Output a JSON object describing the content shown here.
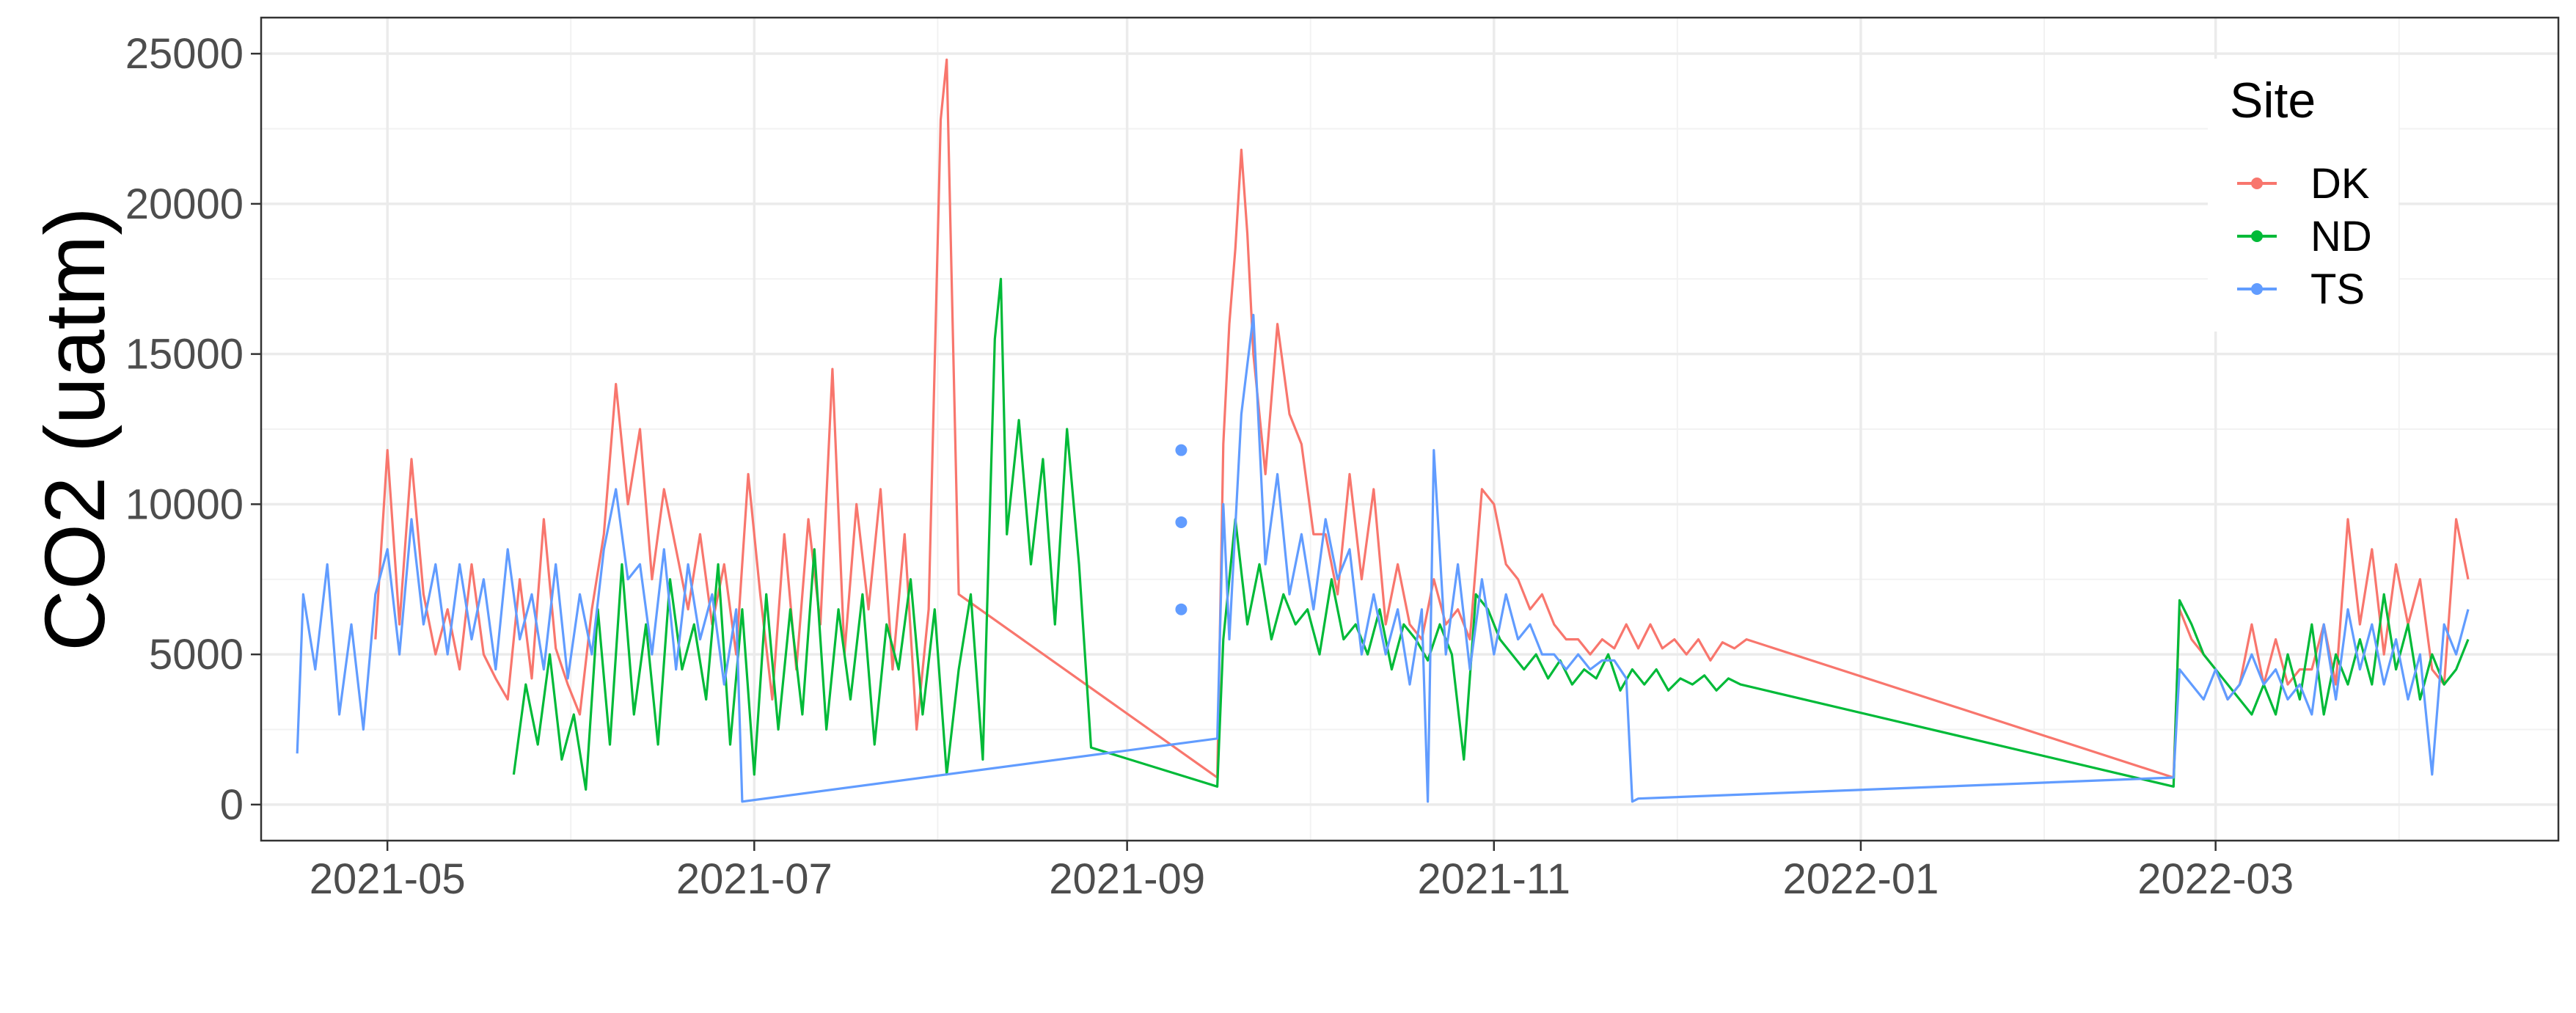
{
  "chart_data": {
    "type": "line",
    "title": "",
    "xlabel": "",
    "ylabel": "CO2 (uatm)",
    "x_type": "date",
    "xlim": [
      "2021-04-10",
      "2022-04-27"
    ],
    "ylim": [
      -1200,
      26200
    ],
    "x_ticks": [
      "2021-05-01",
      "2021-07-01",
      "2021-09-01",
      "2021-11-01",
      "2022-01-01",
      "2022-03-01"
    ],
    "x_tick_labels": [
      "2021-05",
      "2021-07",
      "2021-09",
      "2021-11",
      "2022-01",
      "2022-03"
    ],
    "y_ticks": [
      0,
      5000,
      10000,
      15000,
      20000,
      25000
    ],
    "y_tick_labels": [
      "0",
      "5000",
      "10000",
      "15000",
      "20000",
      "25000"
    ],
    "grid": true,
    "legend": {
      "title": "Site",
      "position": "top-right"
    },
    "series": [
      {
        "name": "DK",
        "color": "#F8766D",
        "x": [
          "2021-04-29",
          "2021-05-01",
          "2021-05-03",
          "2021-05-05",
          "2021-05-07",
          "2021-05-09",
          "2021-05-11",
          "2021-05-13",
          "2021-05-15",
          "2021-05-17",
          "2021-05-19",
          "2021-05-21",
          "2021-05-23",
          "2021-05-25",
          "2021-05-27",
          "2021-05-29",
          "2021-05-31",
          "2021-06-02",
          "2021-06-04",
          "2021-06-06",
          "2021-06-08",
          "2021-06-10",
          "2021-06-12",
          "2021-06-14",
          "2021-06-16",
          "2021-06-18",
          "2021-06-20",
          "2021-06-22",
          "2021-06-24",
          "2021-06-26",
          "2021-06-28",
          "2021-06-30",
          "2021-07-02",
          "2021-07-04",
          "2021-07-06",
          "2021-07-08",
          "2021-07-10",
          "2021-07-12",
          "2021-07-14",
          "2021-07-16",
          "2021-07-18",
          "2021-07-20",
          "2021-07-22",
          "2021-07-24",
          "2021-07-26",
          "2021-07-28",
          "2021-07-30",
          "2021-08-01",
          "2021-08-02",
          "2021-08-04",
          "2021-09-16",
          "2021-09-17",
          "2021-09-18",
          "2021-09-19",
          "2021-09-20",
          "2021-09-21",
          "2021-09-22",
          "2021-09-24",
          "2021-09-26",
          "2021-09-28",
          "2021-09-30",
          "2021-10-02",
          "2021-10-04",
          "2021-10-06",
          "2021-10-08",
          "2021-10-10",
          "2021-10-12",
          "2021-10-14",
          "2021-10-16",
          "2021-10-18",
          "2021-10-20",
          "2021-10-22",
          "2021-10-24",
          "2021-10-26",
          "2021-10-28",
          "2021-10-30",
          "2021-11-01",
          "2021-11-03",
          "2021-11-05",
          "2021-11-07",
          "2021-11-09",
          "2021-11-11",
          "2021-11-13",
          "2021-11-15",
          "2021-11-17",
          "2021-11-19",
          "2021-11-21",
          "2021-11-23",
          "2021-11-25",
          "2021-11-27",
          "2021-11-29",
          "2021-12-01",
          "2021-12-03",
          "2021-12-05",
          "2021-12-07",
          "2021-12-09",
          "2021-12-11",
          "2021-12-13",
          "2022-02-22",
          "2022-02-23",
          "2022-02-25",
          "2022-02-27",
          "2022-03-01",
          "2022-03-03",
          "2022-03-05",
          "2022-03-07",
          "2022-03-09",
          "2022-03-11",
          "2022-03-13",
          "2022-03-15",
          "2022-03-17",
          "2022-03-19",
          "2022-03-21",
          "2022-03-23",
          "2022-03-25",
          "2022-03-27",
          "2022-03-29",
          "2022-03-31",
          "2022-04-02",
          "2022-04-04",
          "2022-04-06",
          "2022-04-08",
          "2022-04-10",
          "2022-04-12"
        ],
        "values": [
          5500,
          11800,
          6000,
          11500,
          7000,
          5000,
          6500,
          4500,
          8000,
          5000,
          4200,
          3500,
          7500,
          4200,
          9500,
          5200,
          4000,
          3000,
          6500,
          9000,
          14000,
          10000,
          12500,
          7500,
          10500,
          8500,
          6500,
          9000,
          6000,
          8000,
          5000,
          11000,
          7000,
          3500,
          9000,
          4500,
          9500,
          6000,
          14500,
          5000,
          10000,
          6500,
          10500,
          4500,
          9000,
          2500,
          6500,
          22800,
          24800,
          7000,
          900,
          12000,
          16000,
          18500,
          21800,
          19000,
          15000,
          11000,
          16000,
          13000,
          12000,
          9000,
          9000,
          7000,
          11000,
          7500,
          10500,
          6000,
          8000,
          6000,
          5500,
          7500,
          6000,
          6500,
          5500,
          10500,
          10000,
          8000,
          7500,
          6500,
          7000,
          6000,
          5500,
          5500,
          5000,
          5500,
          5200,
          6000,
          5200,
          6000,
          5200,
          5500,
          5000,
          5500,
          4800,
          5400,
          5200,
          5500,
          900,
          6500,
          5500,
          5000,
          4500,
          3500,
          4000,
          6000,
          4000,
          5500,
          4000,
          4500,
          4500,
          6000,
          4000,
          9500,
          6000,
          8500,
          5000,
          8000,
          6000,
          7500,
          4500,
          4000,
          9500,
          7500
        ]
      },
      {
        "name": "ND",
        "color": "#00BA38",
        "x": [
          "2021-05-22",
          "2021-05-24",
          "2021-05-26",
          "2021-05-28",
          "2021-05-30",
          "2021-06-01",
          "2021-06-03",
          "2021-06-05",
          "2021-06-07",
          "2021-06-09",
          "2021-06-11",
          "2021-06-13",
          "2021-06-15",
          "2021-06-17",
          "2021-06-19",
          "2021-06-21",
          "2021-06-23",
          "2021-06-25",
          "2021-06-27",
          "2021-06-29",
          "2021-07-01",
          "2021-07-03",
          "2021-07-05",
          "2021-07-07",
          "2021-07-09",
          "2021-07-11",
          "2021-07-13",
          "2021-07-15",
          "2021-07-17",
          "2021-07-19",
          "2021-07-21",
          "2021-07-23",
          "2021-07-25",
          "2021-07-27",
          "2021-07-29",
          "2021-07-31",
          "2021-08-02",
          "2021-08-04",
          "2021-08-06",
          "2021-08-08",
          "2021-08-10",
          "2021-08-11",
          "2021-08-12",
          "2021-08-14",
          "2021-08-16",
          "2021-08-18",
          "2021-08-20",
          "2021-08-22",
          "2021-08-24",
          "2021-08-26",
          "2021-09-16",
          "2021-09-17",
          "2021-09-19",
          "2021-09-21",
          "2021-09-23",
          "2021-09-25",
          "2021-09-27",
          "2021-09-29",
          "2021-10-01",
          "2021-10-03",
          "2021-10-05",
          "2021-10-07",
          "2021-10-09",
          "2021-10-11",
          "2021-10-13",
          "2021-10-15",
          "2021-10-17",
          "2021-10-19",
          "2021-10-21",
          "2021-10-23",
          "2021-10-25",
          "2021-10-27",
          "2021-10-29",
          "2021-10-31",
          "2021-11-02",
          "2021-11-04",
          "2021-11-06",
          "2021-11-08",
          "2021-11-10",
          "2021-11-12",
          "2021-11-14",
          "2021-11-16",
          "2021-11-18",
          "2021-11-20",
          "2021-11-22",
          "2021-11-24",
          "2021-11-26",
          "2021-11-28",
          "2021-11-30",
          "2021-12-02",
          "2021-12-04",
          "2021-12-06",
          "2021-12-08",
          "2021-12-10",
          "2021-12-12",
          "2022-02-22",
          "2022-02-23",
          "2022-02-25",
          "2022-02-27",
          "2022-03-01",
          "2022-03-03",
          "2022-03-05",
          "2022-03-07",
          "2022-03-09",
          "2022-03-11",
          "2022-03-13",
          "2022-03-15",
          "2022-03-17",
          "2022-03-19",
          "2022-03-21",
          "2022-03-23",
          "2022-03-25",
          "2022-03-27",
          "2022-03-29",
          "2022-03-31",
          "2022-04-02",
          "2022-04-04",
          "2022-04-06",
          "2022-04-08",
          "2022-04-10",
          "2022-04-12"
        ],
        "values": [
          1000,
          4000,
          2000,
          5000,
          1500,
          3000,
          500,
          6500,
          2000,
          8000,
          3000,
          6000,
          2000,
          7500,
          4500,
          6000,
          3500,
          8000,
          2000,
          6500,
          1000,
          7000,
          2500,
          6500,
          3000,
          8500,
          2500,
          6500,
          3500,
          7000,
          2000,
          6000,
          4500,
          7500,
          3000,
          6500,
          1000,
          4500,
          7000,
          1500,
          15500,
          17500,
          9000,
          12800,
          8000,
          11500,
          6000,
          12500,
          8000,
          1900,
          600,
          5500,
          9500,
          6000,
          8000,
          5500,
          7000,
          6000,
          6500,
          5000,
          7500,
          5500,
          6000,
          5000,
          6500,
          4500,
          6000,
          5500,
          4800,
          6000,
          5000,
          1500,
          7000,
          6500,
          5500,
          5000,
          4500,
          5000,
          4200,
          4800,
          4000,
          4500,
          4200,
          5000,
          3800,
          4500,
          4000,
          4500,
          3800,
          4200,
          4000,
          4300,
          3800,
          4200,
          4000,
          600,
          6800,
          6000,
          5000,
          4500,
          4000,
          3500,
          3000,
          4000,
          3000,
          5000,
          3500,
          6000,
          3000,
          5000,
          4000,
          5500,
          4000,
          7000,
          4500,
          6000,
          3500,
          5000,
          4000,
          4500,
          5500
        ]
      },
      {
        "name": "TS",
        "color": "#619CFF",
        "x": [
          "2021-04-16",
          "2021-04-17",
          "2021-04-19",
          "2021-04-21",
          "2021-04-23",
          "2021-04-25",
          "2021-04-27",
          "2021-04-29",
          "2021-05-01",
          "2021-05-03",
          "2021-05-05",
          "2021-05-07",
          "2021-05-09",
          "2021-05-11",
          "2021-05-13",
          "2021-05-15",
          "2021-05-17",
          "2021-05-19",
          "2021-05-21",
          "2021-05-23",
          "2021-05-25",
          "2021-05-27",
          "2021-05-29",
          "2021-05-31",
          "2021-06-02",
          "2021-06-04",
          "2021-06-06",
          "2021-06-08",
          "2021-06-10",
          "2021-06-12",
          "2021-06-14",
          "2021-06-16",
          "2021-06-18",
          "2021-06-20",
          "2021-06-22",
          "2021-06-24",
          "2021-06-26",
          "2021-06-28",
          "2021-06-29",
          "2021-09-16",
          "2021-09-17",
          "2021-09-18",
          "2021-09-20",
          "2021-09-22",
          "2021-09-24",
          "2021-09-26",
          "2021-09-28",
          "2021-09-30",
          "2021-10-02",
          "2021-10-04",
          "2021-10-06",
          "2021-10-08",
          "2021-10-10",
          "2021-10-12",
          "2021-10-14",
          "2021-10-16",
          "2021-10-18",
          "2021-10-20",
          "2021-10-21",
          "2021-10-22",
          "2021-10-24",
          "2021-10-26",
          "2021-10-28",
          "2021-10-30",
          "2021-11-01",
          "2021-11-03",
          "2021-11-05",
          "2021-11-07",
          "2021-11-09",
          "2021-11-11",
          "2021-11-13",
          "2021-11-15",
          "2021-11-17",
          "2021-11-19",
          "2021-11-21",
          "2021-11-23",
          "2021-11-24",
          "2021-11-25",
          "2022-02-22",
          "2022-02-23",
          "2022-02-25",
          "2022-02-27",
          "2022-03-01",
          "2022-03-03",
          "2022-03-05",
          "2022-03-07",
          "2022-03-09",
          "2022-03-11",
          "2022-03-13",
          "2022-03-15",
          "2022-03-17",
          "2022-03-19",
          "2022-03-21",
          "2022-03-23",
          "2022-03-25",
          "2022-03-27",
          "2022-03-29",
          "2022-03-31",
          "2022-04-02",
          "2022-04-04",
          "2022-04-06",
          "2022-04-08",
          "2022-04-10",
          "2022-04-12"
        ],
        "values": [
          1700,
          7000,
          4500,
          8000,
          3000,
          6000,
          2500,
          7000,
          8500,
          5000,
          9500,
          6000,
          8000,
          5000,
          8000,
          5500,
          7500,
          4500,
          8500,
          5500,
          7000,
          4500,
          8000,
          4200,
          7000,
          5000,
          8500,
          10500,
          7500,
          8000,
          5000,
          8500,
          4500,
          8000,
          5500,
          7000,
          4000,
          6500,
          100,
          2200,
          10000,
          5500,
          13000,
          16300,
          8000,
          11000,
          7000,
          9000,
          6500,
          9500,
          7500,
          8500,
          5000,
          7000,
          5000,
          6500,
          4000,
          6500,
          100,
          11800,
          5000,
          8000,
          4500,
          7500,
          5000,
          7000,
          5500,
          6000,
          5000,
          5000,
          4500,
          5000,
          4500,
          4800,
          4800,
          4200,
          100,
          200,
          900,
          4500,
          4000,
          3500,
          4500,
          3500,
          4000,
          5000,
          4000,
          4500,
          3500,
          4000,
          3000,
          6000,
          3500,
          6500,
          4500,
          6000,
          4000,
          5500,
          3500,
          5000,
          1000,
          6000,
          5000,
          6500
        ]
      },
      {
        "name": "TS",
        "type": "scatter",
        "color": "#619CFF",
        "x": [
          "2021-09-10",
          "2021-09-10",
          "2021-09-10"
        ],
        "values": [
          11800,
          9400,
          6500
        ]
      }
    ]
  }
}
